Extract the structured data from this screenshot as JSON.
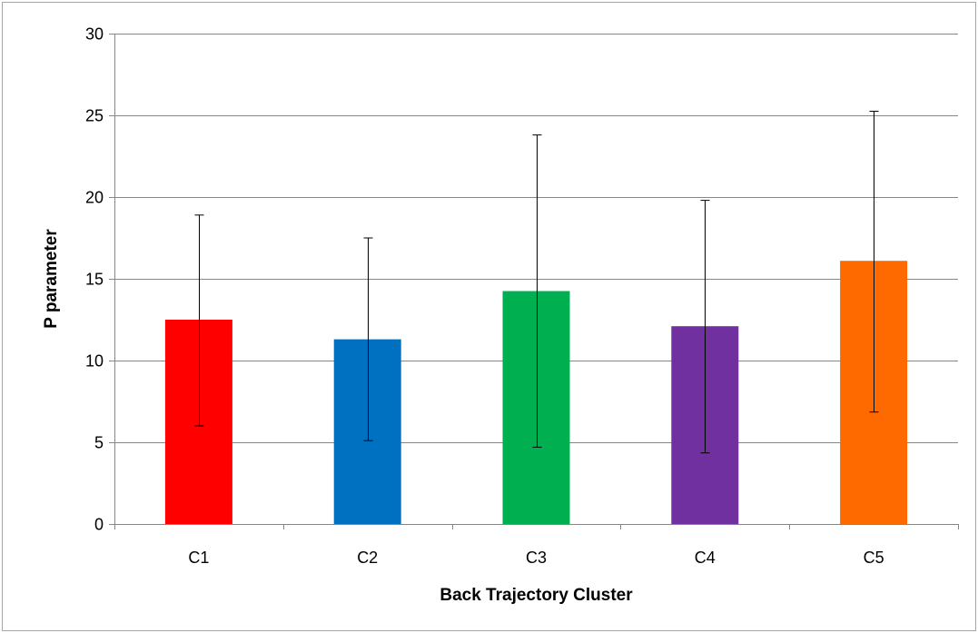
{
  "chart_data": {
    "type": "bar",
    "title": "",
    "xlabel": "Back Trajectory Cluster",
    "ylabel": "P parameter",
    "categories": [
      "C1",
      "C2",
      "C3",
      "C4",
      "C5"
    ],
    "values": [
      12.5,
      11.3,
      14.25,
      12.1,
      16.1
    ],
    "error_low": [
      6.0,
      5.1,
      4.7,
      4.35,
      6.85
    ],
    "error_high": [
      18.9,
      17.5,
      23.8,
      19.8,
      25.25
    ],
    "colors": [
      "#ff0000",
      "#0070c0",
      "#00b050",
      "#7030a0",
      "#ff6a00"
    ],
    "ylim": [
      0,
      30
    ],
    "yticks": [
      0,
      5,
      10,
      15,
      20,
      25,
      30
    ],
    "grid": true,
    "legend": "none"
  }
}
